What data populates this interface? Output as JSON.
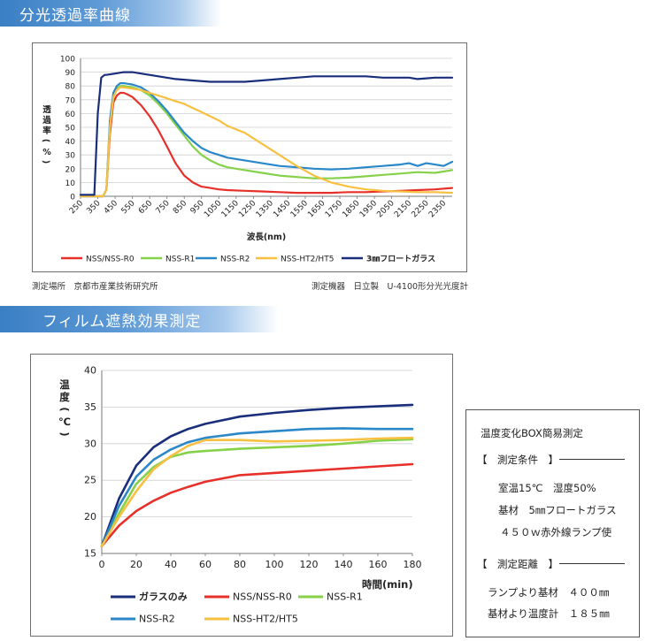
{
  "section1": {
    "title": "分光透過率曲線"
  },
  "section2": {
    "title": "フィルム遮熱効果測定"
  },
  "chart1": {
    "note_left": "測定場所　京都市産業技術研究所",
    "note_right": "測定機器　日立製　U-4100形分光光度計"
  },
  "infobox": {
    "title": "温度変化BOX簡易測定",
    "cond_header": "【　測定条件　】",
    "cond_lines": [
      "室温15℃　湿度50%",
      "基材　5㎜フロートガラス",
      "４５０ｗ赤外線ランプ使"
    ],
    "dist_header": "【　測定距離　】",
    "dist_lines": [
      "ランプより基材　４００㎜",
      "基材より温度計　１８５㎜"
    ]
  },
  "chart_data": [
    {
      "type": "line",
      "title": "",
      "xlabel": "波長(nm)",
      "ylabel": "透過率(%)",
      "xlim": [
        250,
        2400
      ],
      "ylim": [
        0,
        100
      ],
      "x_ticks": [
        250,
        350,
        450,
        550,
        650,
        750,
        850,
        950,
        1050,
        1150,
        1250,
        1350,
        1450,
        1550,
        1650,
        1750,
        1850,
        1950,
        2050,
        2150,
        2250,
        2350
      ],
      "y_ticks": [
        0,
        10,
        20,
        30,
        40,
        50,
        60,
        70,
        80,
        90,
        100
      ],
      "grid": true,
      "legend_position": "bottom",
      "series": [
        {
          "name": "NSS/NSS-R0",
          "color": "#e8302a",
          "x": [
            250,
            380,
            400,
            420,
            440,
            460,
            480,
            500,
            520,
            550,
            600,
            650,
            700,
            750,
            800,
            850,
            900,
            950,
            1000,
            1050,
            1100,
            1200,
            1300,
            1400,
            1500,
            1600,
            1700,
            1800,
            1900,
            2000,
            2100,
            2200,
            2300,
            2400
          ],
          "y": [
            0,
            0,
            5,
            45,
            68,
            73,
            75,
            75,
            74,
            72,
            66,
            58,
            48,
            36,
            24,
            15,
            10,
            7,
            6,
            5,
            4.5,
            4,
            3.5,
            3,
            2.5,
            2.5,
            2.5,
            3,
            3,
            3.5,
            4,
            4.5,
            5,
            6
          ]
        },
        {
          "name": "NSS-R1",
          "color": "#86d14a",
          "x": [
            250,
            380,
            400,
            420,
            440,
            460,
            480,
            500,
            550,
            600,
            650,
            700,
            750,
            800,
            850,
            900,
            950,
            1000,
            1050,
            1100,
            1200,
            1300,
            1400,
            1500,
            1600,
            1700,
            1800,
            1900,
            2000,
            2100,
            2200,
            2300,
            2400
          ],
          "y": [
            0,
            0,
            5,
            50,
            72,
            78,
            80,
            80,
            79,
            77,
            73,
            67,
            60,
            52,
            44,
            36,
            30,
            26,
            23,
            21,
            19,
            17,
            15,
            14,
            13,
            13,
            13.5,
            14.5,
            15.5,
            16.5,
            17.5,
            17,
            19
          ]
        },
        {
          "name": "NSS-R2",
          "color": "#2a87c8",
          "x": [
            250,
            380,
            400,
            420,
            440,
            460,
            480,
            500,
            550,
            600,
            650,
            700,
            750,
            800,
            850,
            900,
            950,
            1000,
            1050,
            1100,
            1200,
            1300,
            1400,
            1500,
            1600,
            1700,
            1800,
            1900,
            2000,
            2100,
            2150,
            2200,
            2250,
            2300,
            2350,
            2400
          ],
          "y": [
            0,
            0,
            5,
            55,
            75,
            80,
            82,
            82,
            81,
            79,
            75,
            69,
            62,
            54,
            46,
            40,
            35,
            32,
            30,
            28,
            26,
            24,
            22,
            21,
            20,
            19.5,
            20,
            21,
            22,
            23,
            24,
            22,
            24,
            23,
            22,
            25
          ]
        },
        {
          "name": "NSS-HT2/HT5",
          "color": "#f7c040",
          "x": [
            250,
            380,
            400,
            420,
            440,
            460,
            480,
            500,
            550,
            600,
            650,
            700,
            750,
            800,
            850,
            900,
            950,
            1000,
            1050,
            1100,
            1200,
            1300,
            1400,
            1500,
            1600,
            1700,
            1800,
            1900,
            2000,
            2100,
            2200,
            2300,
            2400
          ],
          "y": [
            0,
            0,
            5,
            50,
            72,
            77,
            79,
            79,
            78,
            77,
            75,
            73,
            71,
            69,
            67,
            64,
            61,
            58,
            55,
            51,
            46,
            38,
            30,
            22,
            15,
            10,
            7,
            5,
            4,
            3.5,
            3,
            3,
            2.5
          ]
        },
        {
          "name": "3㎜フロートガラス",
          "color": "#1a2f7c",
          "x": [
            250,
            300,
            330,
            350,
            370,
            390,
            400,
            450,
            500,
            550,
            600,
            700,
            800,
            900,
            1000,
            1100,
            1200,
            1300,
            1400,
            1500,
            1600,
            1700,
            1800,
            1900,
            2000,
            2100,
            2150,
            2200,
            2250,
            2300,
            2350,
            2400
          ],
          "y": [
            1,
            1,
            1,
            60,
            86,
            88,
            88,
            89,
            90,
            90,
            89,
            87,
            85,
            84,
            83,
            83,
            83,
            84,
            85,
            86,
            87,
            87,
            87,
            87,
            86,
            86,
            86,
            85,
            85.5,
            86,
            86,
            86
          ]
        }
      ]
    },
    {
      "type": "line",
      "title": "",
      "xlabel": "時間(min)",
      "ylabel": "温度(℃)",
      "xlim": [
        0,
        180
      ],
      "ylim": [
        15,
        40
      ],
      "x_ticks": [
        0,
        20,
        40,
        60,
        80,
        100,
        120,
        140,
        160,
        180
      ],
      "y_ticks": [
        15,
        20,
        25,
        30,
        35,
        40
      ],
      "grid": true,
      "legend_position": "bottom",
      "series": [
        {
          "name": "ガラスのみ",
          "color": "#1a2f7c",
          "x": [
            0,
            10,
            20,
            30,
            40,
            50,
            60,
            80,
            100,
            120,
            140,
            160,
            180
          ],
          "y": [
            16,
            22.5,
            27,
            29.5,
            31,
            32,
            32.7,
            33.7,
            34.2,
            34.6,
            34.9,
            35.1,
            35.3
          ]
        },
        {
          "name": "NSS/NSS-R0",
          "color": "#e8302a",
          "x": [
            0,
            10,
            20,
            30,
            40,
            50,
            60,
            80,
            100,
            120,
            140,
            160,
            180
          ],
          "y": [
            16,
            18.8,
            20.8,
            22.2,
            23.3,
            24.1,
            24.8,
            25.7,
            26,
            26.3,
            26.6,
            26.9,
            27.2
          ]
        },
        {
          "name": "NSS-R1",
          "color": "#86d14a",
          "x": [
            0,
            10,
            20,
            30,
            40,
            50,
            60,
            80,
            100,
            120,
            140,
            160,
            180
          ],
          "y": [
            16,
            20.5,
            24.5,
            26.8,
            28.2,
            28.8,
            29,
            29.3,
            29.5,
            29.7,
            30,
            30.4,
            30.6
          ]
        },
        {
          "name": "NSS-R2",
          "color": "#2a87c8",
          "x": [
            0,
            10,
            20,
            30,
            40,
            50,
            60,
            80,
            100,
            120,
            140,
            160,
            180
          ],
          "y": [
            16,
            21.5,
            25.5,
            27.8,
            29.2,
            30.2,
            30.8,
            31.4,
            31.7,
            32,
            32.1,
            32,
            32
          ]
        },
        {
          "name": "NSS-HT2/HT5",
          "color": "#f7c040",
          "x": [
            0,
            10,
            20,
            30,
            40,
            50,
            60,
            80,
            100,
            120,
            140,
            160,
            180
          ],
          "y": [
            16,
            20,
            23.5,
            26.5,
            28.3,
            29.7,
            30.5,
            30.5,
            30.3,
            30.4,
            30.5,
            30.7,
            30.8
          ]
        }
      ]
    }
  ]
}
